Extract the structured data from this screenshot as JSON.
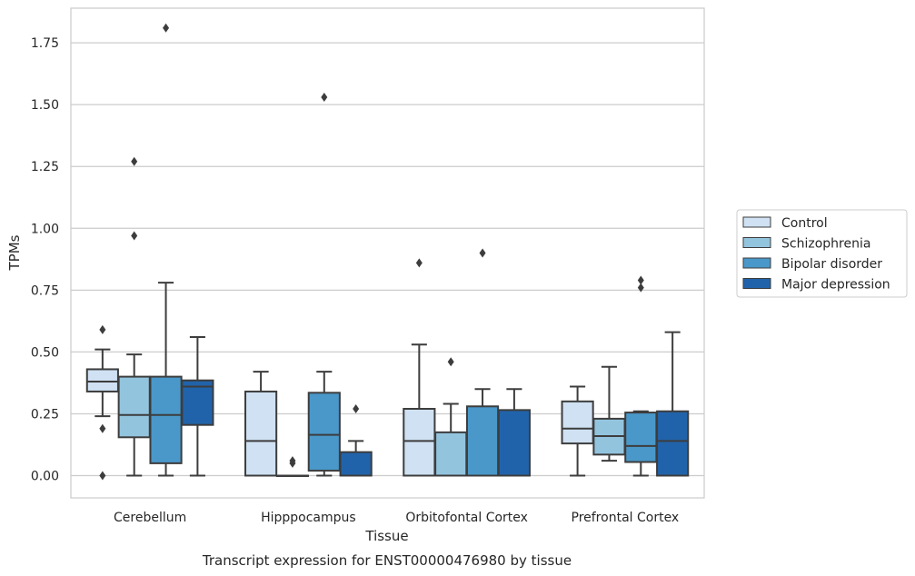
{
  "chart_data": {
    "type": "box",
    "title": "",
    "caption": "Transcript expression for ENST00000476980 by tissue",
    "xlabel": "Tissue",
    "ylabel": "TPMs",
    "ylim": [
      -0.09,
      1.89
    ],
    "yticks": [
      0.0,
      0.25,
      0.5,
      0.75,
      1.0,
      1.25,
      1.5,
      1.75
    ],
    "ytick_labels": [
      "0.00",
      "0.25",
      "0.50",
      "0.75",
      "1.00",
      "1.25",
      "1.50",
      "1.75"
    ],
    "grid": true,
    "legend_position": "right",
    "categories": [
      "Cerebellum",
      "Hipppocampus",
      "Orbitofontal Cortex",
      "Prefrontal Cortex"
    ],
    "series": [
      {
        "name": "Control",
        "color": "#cfe1f2",
        "boxes": [
          {
            "whislo": 0.24,
            "q1": 0.34,
            "med": 0.38,
            "q3": 0.43,
            "whishi": 0.51,
            "fliers": [
              0.59,
              0.19,
              0.0
            ]
          },
          {
            "whislo": 0.0,
            "q1": 0.0,
            "med": 0.14,
            "q3": 0.34,
            "whishi": 0.42,
            "fliers": []
          },
          {
            "whislo": 0.0,
            "q1": 0.0,
            "med": 0.14,
            "q3": 0.27,
            "whishi": 0.53,
            "fliers": [
              0.86
            ]
          },
          {
            "whislo": 0.0,
            "q1": 0.13,
            "med": 0.19,
            "q3": 0.3,
            "whishi": 0.36,
            "fliers": []
          }
        ]
      },
      {
        "name": "Schizophrenia",
        "color": "#93c4de",
        "boxes": [
          {
            "whislo": 0.0,
            "q1": 0.155,
            "med": 0.245,
            "q3": 0.4,
            "whishi": 0.49,
            "fliers": [
              1.27,
              0.97
            ]
          },
          {
            "whislo": 0.0,
            "q1": 0.0,
            "med": 0.0,
            "q3": 0.0,
            "whishi": 0.0,
            "fliers": [
              0.06,
              0.05
            ]
          },
          {
            "whislo": 0.0,
            "q1": 0.0,
            "med": 0.0,
            "q3": 0.175,
            "whishi": 0.29,
            "fliers": [
              0.46
            ]
          },
          {
            "whislo": 0.06,
            "q1": 0.085,
            "med": 0.16,
            "q3": 0.23,
            "whishi": 0.44,
            "fliers": []
          }
        ]
      },
      {
        "name": "Bipolar disorder",
        "color": "#4a98c9",
        "boxes": [
          {
            "whislo": 0.0,
            "q1": 0.05,
            "med": 0.245,
            "q3": 0.4,
            "whishi": 0.78,
            "fliers": [
              1.81
            ]
          },
          {
            "whislo": 0.0,
            "q1": 0.02,
            "med": 0.165,
            "q3": 0.335,
            "whishi": 0.42,
            "fliers": [
              1.53
            ]
          },
          {
            "whislo": 0.0,
            "q1": 0.0,
            "med": 0.0,
            "q3": 0.28,
            "whishi": 0.35,
            "fliers": [
              0.9
            ]
          },
          {
            "whislo": 0.0,
            "q1": 0.055,
            "med": 0.12,
            "q3": 0.255,
            "whishi": 0.26,
            "fliers": [
              0.79,
              0.76
            ]
          }
        ]
      },
      {
        "name": "Major depression",
        "color": "#2163aa",
        "boxes": [
          {
            "whislo": 0.0,
            "q1": 0.205,
            "med": 0.36,
            "q3": 0.385,
            "whishi": 0.56,
            "fliers": []
          },
          {
            "whislo": 0.0,
            "q1": 0.0,
            "med": 0.0,
            "q3": 0.095,
            "whishi": 0.14,
            "fliers": [
              0.27
            ]
          },
          {
            "whislo": 0.0,
            "q1": 0.0,
            "med": 0.0,
            "q3": 0.265,
            "whishi": 0.35,
            "fliers": []
          },
          {
            "whislo": 0.0,
            "q1": 0.0,
            "med": 0.14,
            "q3": 0.26,
            "whishi": 0.58,
            "fliers": []
          }
        ]
      }
    ]
  }
}
